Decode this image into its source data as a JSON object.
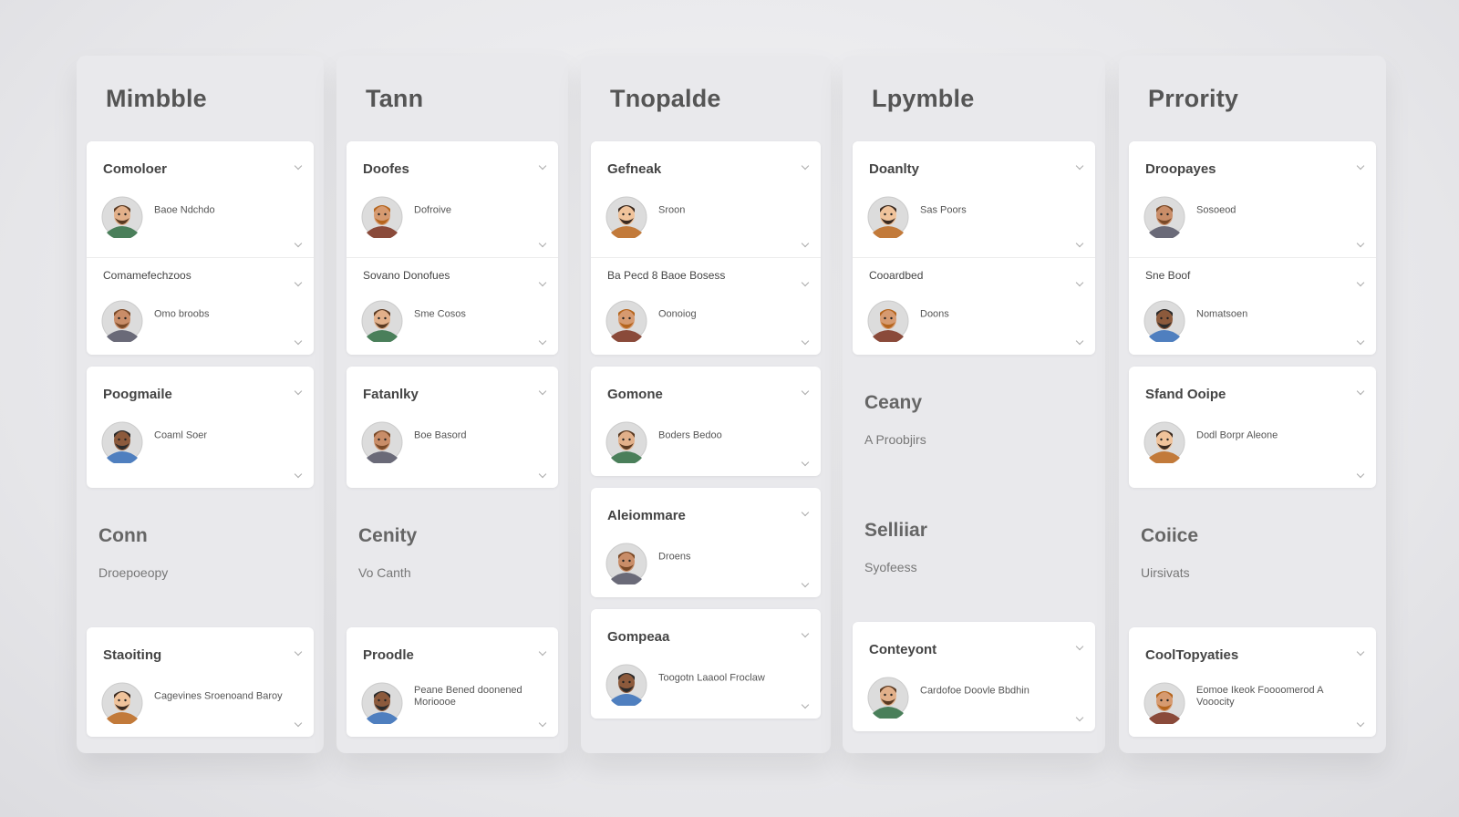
{
  "columns": [
    {
      "title": "Mimbble",
      "blocks": [
        {
          "type": "card",
          "items": [
            {
              "title": "Comoloer",
              "person": "Baoe Ndchdo"
            },
            {
              "title": "Comamefechzoos",
              "person": "Omo broobs"
            }
          ]
        },
        {
          "type": "card",
          "items": [
            {
              "title": "Poogmaile",
              "person": "Coaml Soer"
            }
          ]
        },
        {
          "type": "section",
          "title": "Conn",
          "subtitle": "Droepoeopy"
        },
        {
          "type": "card",
          "items": [
            {
              "title": "Staoiting",
              "person": "Cagevines Sroenoand Baroy"
            }
          ]
        }
      ]
    },
    {
      "title": "Tann",
      "blocks": [
        {
          "type": "card",
          "items": [
            {
              "title": "Doofes",
              "person": "Dofroive"
            },
            {
              "title": "Sovano Donofues",
              "person": "Sme Cosos"
            }
          ]
        },
        {
          "type": "card",
          "items": [
            {
              "title": "Fatanlky",
              "person": "Boe Basord"
            }
          ]
        },
        {
          "type": "section",
          "title": "Cenity",
          "subtitle": "Vo Canth"
        },
        {
          "type": "card",
          "items": [
            {
              "title": "Proodle",
              "person": "Peane Bened doonened Morioooe"
            }
          ]
        }
      ]
    },
    {
      "title": "Tnopalde",
      "blocks": [
        {
          "type": "card",
          "items": [
            {
              "title": "Gefneak",
              "person": "Sroon"
            },
            {
              "title": "Ba Pecd 8 Baoe Bosess",
              "person": "Oonoiog"
            }
          ]
        },
        {
          "type": "card",
          "items": [
            {
              "title": "Gomone",
              "person": "Boders Bedoo"
            }
          ]
        },
        {
          "type": "card",
          "items": [
            {
              "title": "Aleiommare",
              "person": "Droens"
            }
          ]
        },
        {
          "type": "card",
          "items": [
            {
              "title": "Gompeaa",
              "person": "Toogotn Laaool Froclaw"
            }
          ]
        }
      ]
    },
    {
      "title": "Lpymble",
      "blocks": [
        {
          "type": "card",
          "items": [
            {
              "title": "Doanlty",
              "person": "Sas Poors"
            },
            {
              "title": "Cooardbed",
              "person": "Doons"
            }
          ]
        },
        {
          "type": "section",
          "title": "Ceany",
          "subtitle": "A Proobjirs"
        },
        {
          "type": "section",
          "title": "Selliiar",
          "subtitle": "Syofeess"
        },
        {
          "type": "card",
          "items": [
            {
              "title": "Conteyont",
              "person": "Cardofoe Doovle Bbdhin"
            }
          ]
        }
      ]
    },
    {
      "title": "Prrority",
      "blocks": [
        {
          "type": "card",
          "items": [
            {
              "title": "Droopayes",
              "person": "Sosoeod"
            },
            {
              "title": "Sne Boof",
              "person": "Nomatsoen"
            }
          ]
        },
        {
          "type": "card",
          "items": [
            {
              "title": "Sfand Ooipe",
              "person": "Dodl Borpr Aleone"
            }
          ]
        },
        {
          "type": "section",
          "title": "Coiice",
          "subtitle": "Uirsivats"
        },
        {
          "type": "card",
          "items": [
            {
              "title": "CoolTopyaties",
              "person": "Eomoe Ikeok Foooomerod A Vooocity"
            }
          ]
        }
      ]
    }
  ]
}
